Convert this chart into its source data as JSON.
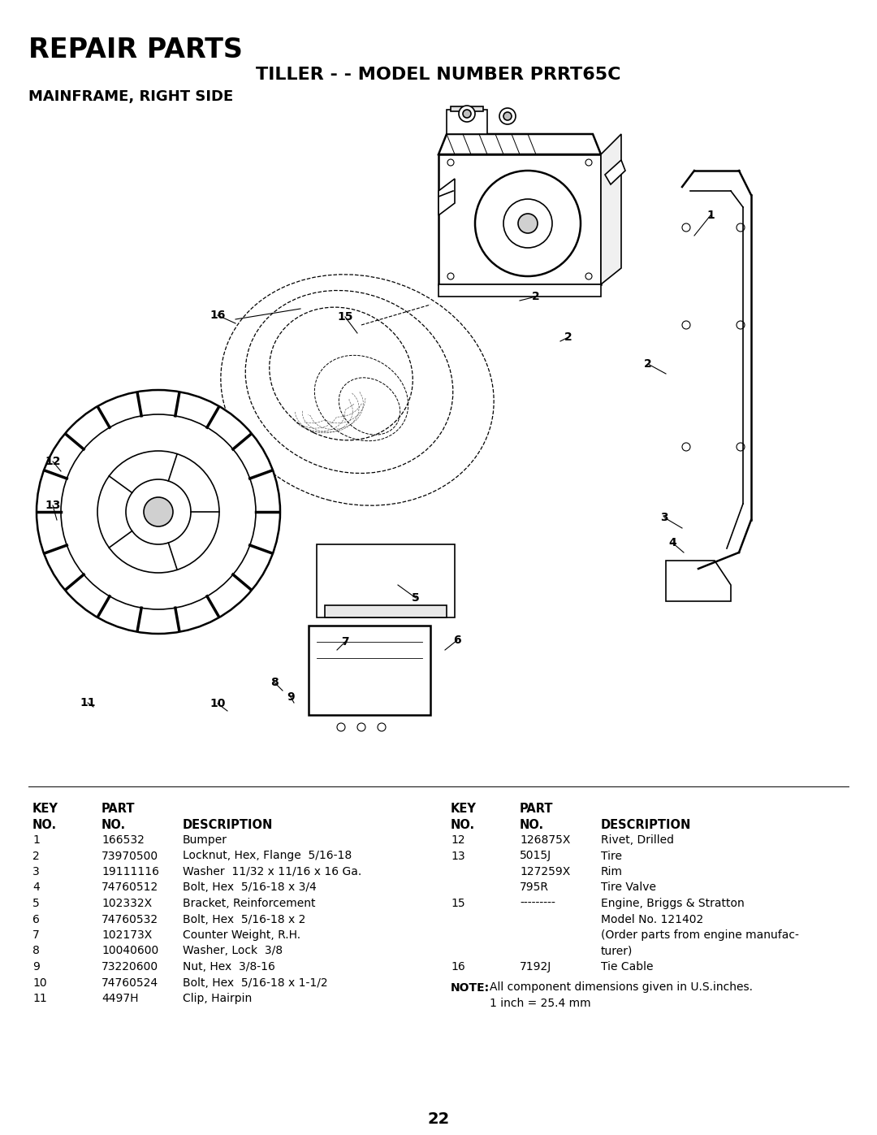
{
  "title_repair": "REPAIR PARTS",
  "title_model": "TILLER - - MODEL NUMBER PRRT65C",
  "title_section": "MAINFRAME, RIGHT SIDE",
  "page_number": "22",
  "bg_color": "#ffffff",
  "text_color": "#000000",
  "left_table_rows": [
    [
      "1",
      "166532",
      "Bumper"
    ],
    [
      "2",
      "73970500",
      "Locknut, Hex, Flange  5/16-18"
    ],
    [
      "3",
      "19111116",
      "Washer  11/32 x 11/16 x 16 Ga."
    ],
    [
      "4",
      "74760512",
      "Bolt, Hex  5/16-18 x 3/4"
    ],
    [
      "5",
      "102332X",
      "Bracket, Reinforcement"
    ],
    [
      "6",
      "74760532",
      "Bolt, Hex  5/16-18 x 2"
    ],
    [
      "7",
      "102173X",
      "Counter Weight, R.H."
    ],
    [
      "8",
      "10040600",
      "Washer, Lock  3/8"
    ],
    [
      "9",
      "73220600",
      "Nut, Hex  3/8-16"
    ],
    [
      "10",
      "74760524",
      "Bolt, Hex  5/16-18 x 1-1/2"
    ],
    [
      "11",
      "4497H",
      "Clip, Hairpin"
    ]
  ],
  "right_table_rows": [
    [
      "12",
      "126875X",
      "Rivet, Drilled"
    ],
    [
      "13",
      "5015J",
      "Tire"
    ],
    [
      "",
      "127259X",
      "Rim"
    ],
    [
      "",
      "795R",
      "Tire Valve"
    ],
    [
      "15",
      "---------",
      "Engine, Briggs & Stratton"
    ],
    [
      "",
      "",
      "Model No. 121402"
    ],
    [
      "",
      "",
      "(Order parts from engine manufac-"
    ],
    [
      "",
      "",
      "turer)"
    ],
    [
      "16",
      "7192J",
      "Tie Cable"
    ]
  ]
}
